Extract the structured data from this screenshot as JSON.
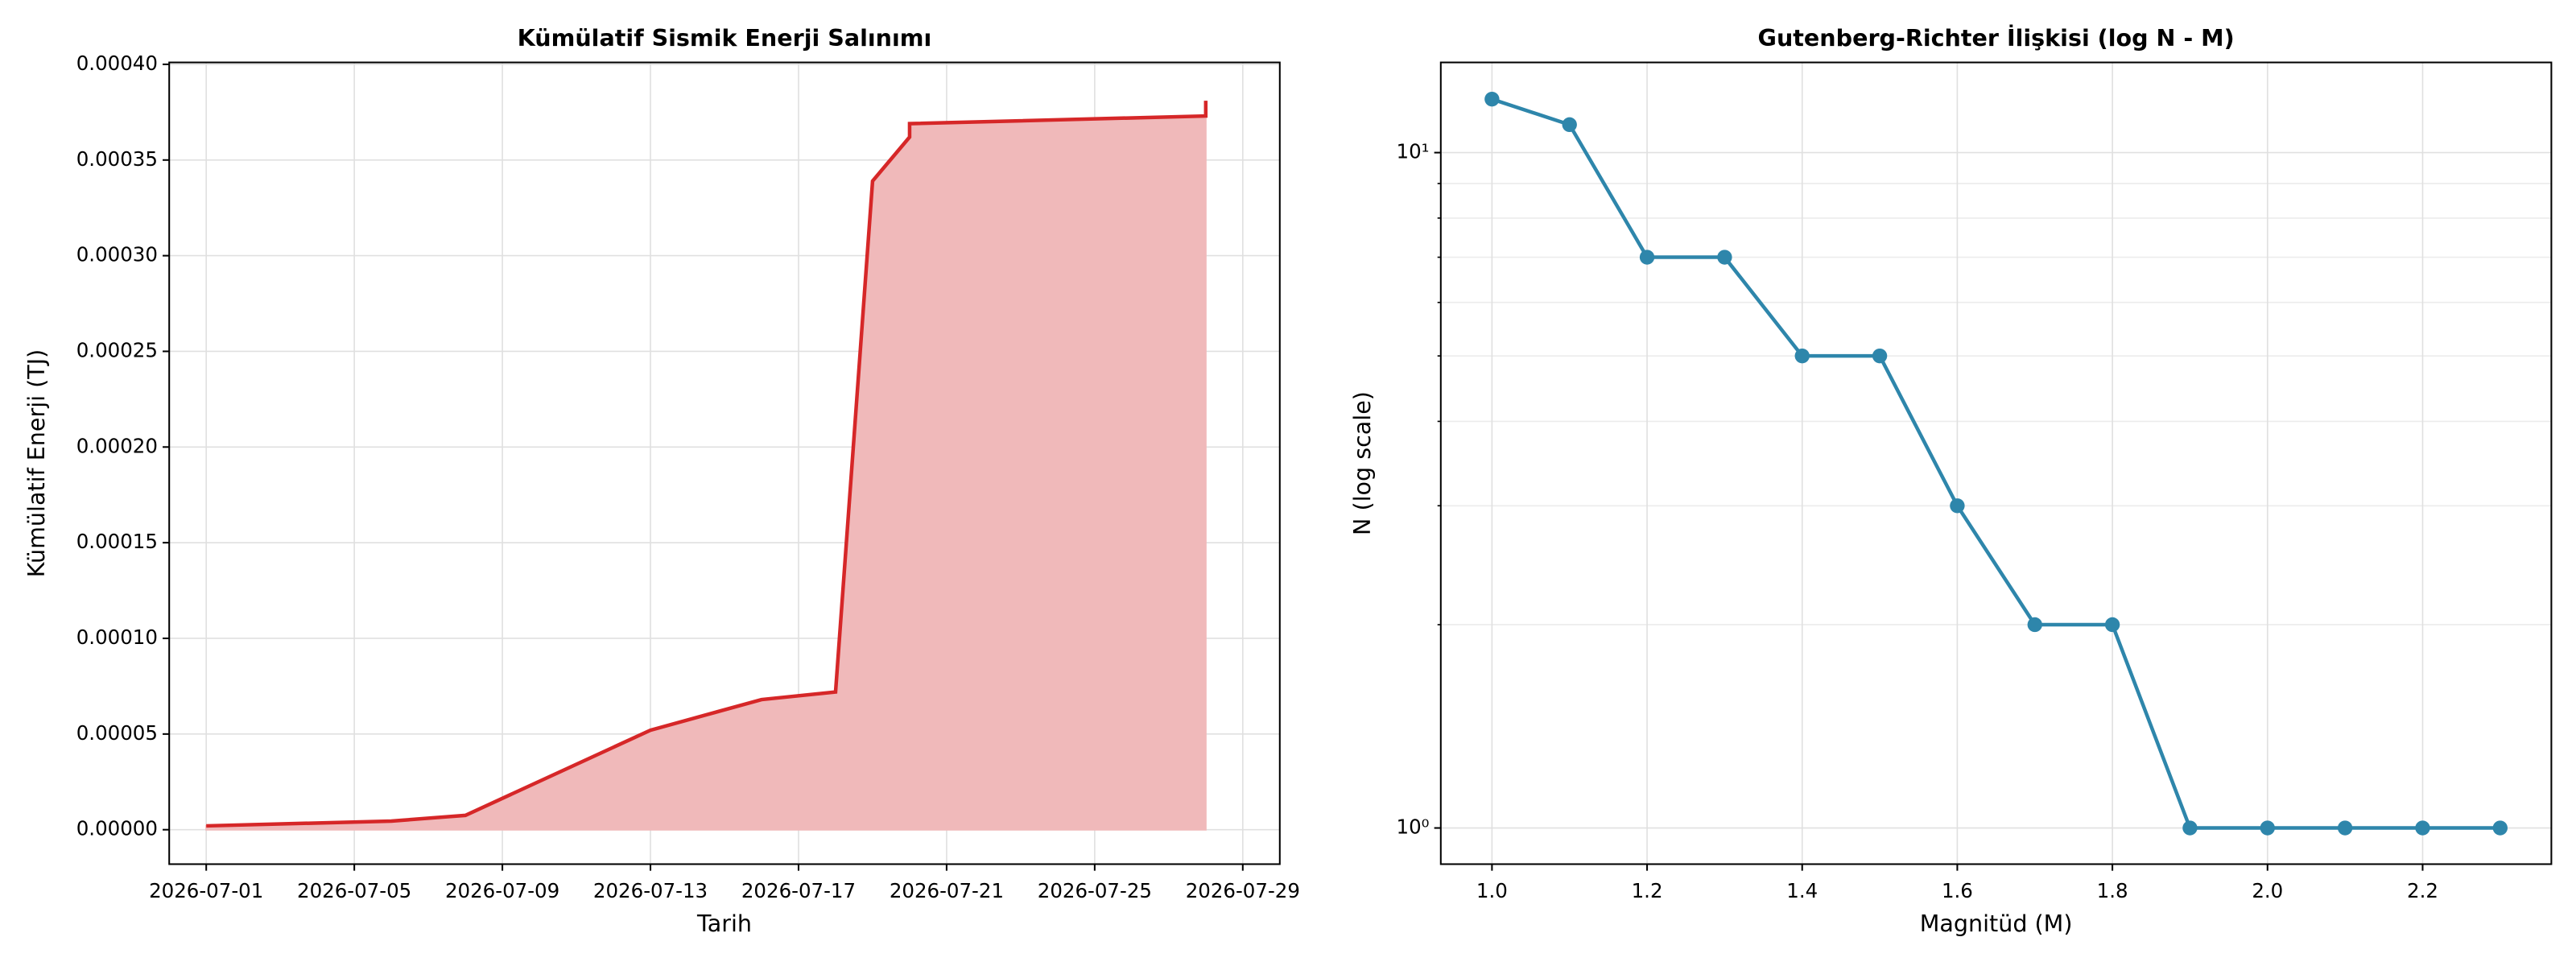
{
  "chart_data": [
    {
      "type": "area",
      "title": "Kümülatif Sismik Enerji Salınımı",
      "xlabel": "Tarih",
      "ylabel": "Kümülatif Enerji (TJ)",
      "x": [
        "2026-07-01",
        "2026-07-06",
        "2026-07-08",
        "2026-07-13",
        "2026-07-16",
        "2026-07-18",
        "2026-07-19",
        "2026-07-20",
        "2026-07-20",
        "2026-07-28",
        "2026-07-28"
      ],
      "values": [
        2e-06,
        4.5e-06,
        7.5e-06,
        5.2e-05,
        6.8e-05,
        7.2e-05,
        0.000339,
        0.000362,
        0.000369,
        0.000373,
        0.000381
      ],
      "color": "#d62728",
      "fill_color": "#f0b9ba",
      "xlim": [
        "2026-06-30",
        "2026-07-30"
      ],
      "xticks": [
        "2026-07-01",
        "2026-07-05",
        "2026-07-09",
        "2026-07-13",
        "2026-07-17",
        "2026-07-21",
        "2026-07-25",
        "2026-07-29"
      ],
      "ylim": [
        -1.8e-05,
        0.000401
      ],
      "yticks": [
        {
          "value": 0,
          "label": "0.00000"
        },
        {
          "value": 5e-05,
          "label": "0.00005"
        },
        {
          "value": 0.0001,
          "label": "0.00010"
        },
        {
          "value": 0.00015,
          "label": "0.00015"
        },
        {
          "value": 0.0002,
          "label": "0.00020"
        },
        {
          "value": 0.00025,
          "label": "0.00025"
        },
        {
          "value": 0.0003,
          "label": "0.00030"
        },
        {
          "value": 0.00035,
          "label": "0.00035"
        },
        {
          "value": 0.0004,
          "label": "0.00040"
        }
      ],
      "grid": true
    },
    {
      "type": "line",
      "title": "Gutenberg-Richter İlişkisi (log N - M)",
      "xlabel": "Magnitüd (M)",
      "ylabel": "N (log scale)",
      "x": [
        1.0,
        1.1,
        1.2,
        1.3,
        1.4,
        1.5,
        1.6,
        1.7,
        1.8,
        1.9,
        2.0,
        2.1,
        2.2,
        2.3
      ],
      "values": [
        12,
        11,
        7,
        7,
        5,
        5,
        3,
        2,
        2,
        1,
        1,
        1,
        1,
        1
      ],
      "color": "#2e86ab",
      "xlim": [
        0.934,
        2.366
      ],
      "xticks": [
        {
          "value": 1,
          "label": "1.0"
        },
        {
          "value": 1.2,
          "label": "1.2"
        },
        {
          "value": 1.4,
          "label": "1.4"
        },
        {
          "value": 1.6,
          "label": "1.6"
        },
        {
          "value": 1.8,
          "label": "1.8"
        },
        {
          "value": 2,
          "label": "2.0"
        },
        {
          "value": 2.2,
          "label": "2.2"
        }
      ],
      "ylim": [
        0.884,
        13.6
      ],
      "log_y": true,
      "yticks": [
        {
          "value": 1,
          "label": "10⁰"
        },
        {
          "value": 10,
          "label": "10¹"
        }
      ],
      "minor_yticks": [
        2,
        3,
        4,
        5,
        6,
        7,
        8,
        9
      ],
      "grid": true
    }
  ]
}
